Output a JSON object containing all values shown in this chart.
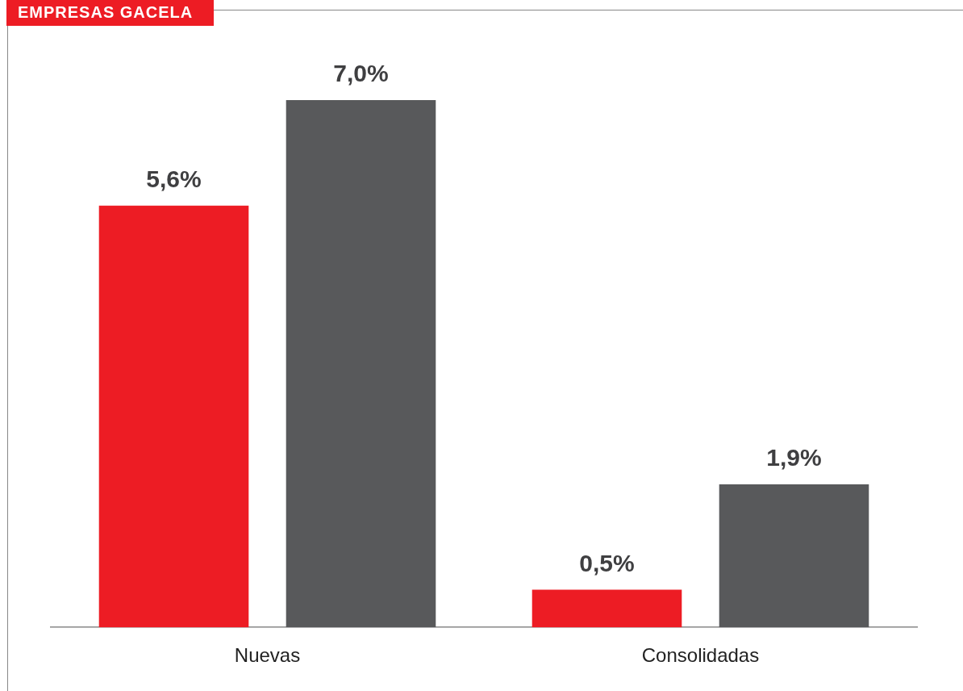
{
  "chart_data": {
    "type": "bar",
    "title": "EMPRESAS GACELA",
    "categories": [
      "Nuevas",
      "Consolidadas"
    ],
    "series": [
      {
        "color": "#ed1c24",
        "values": [
          5.6,
          0.5
        ],
        "value_labels": [
          "5,6%",
          "0,5%"
        ]
      },
      {
        "color": "#58595b",
        "values": [
          7.0,
          1.9
        ],
        "value_labels": [
          "7,0%",
          "1,9%"
        ]
      }
    ],
    "grid": false,
    "legend": false,
    "tick_labels": "x"
  }
}
